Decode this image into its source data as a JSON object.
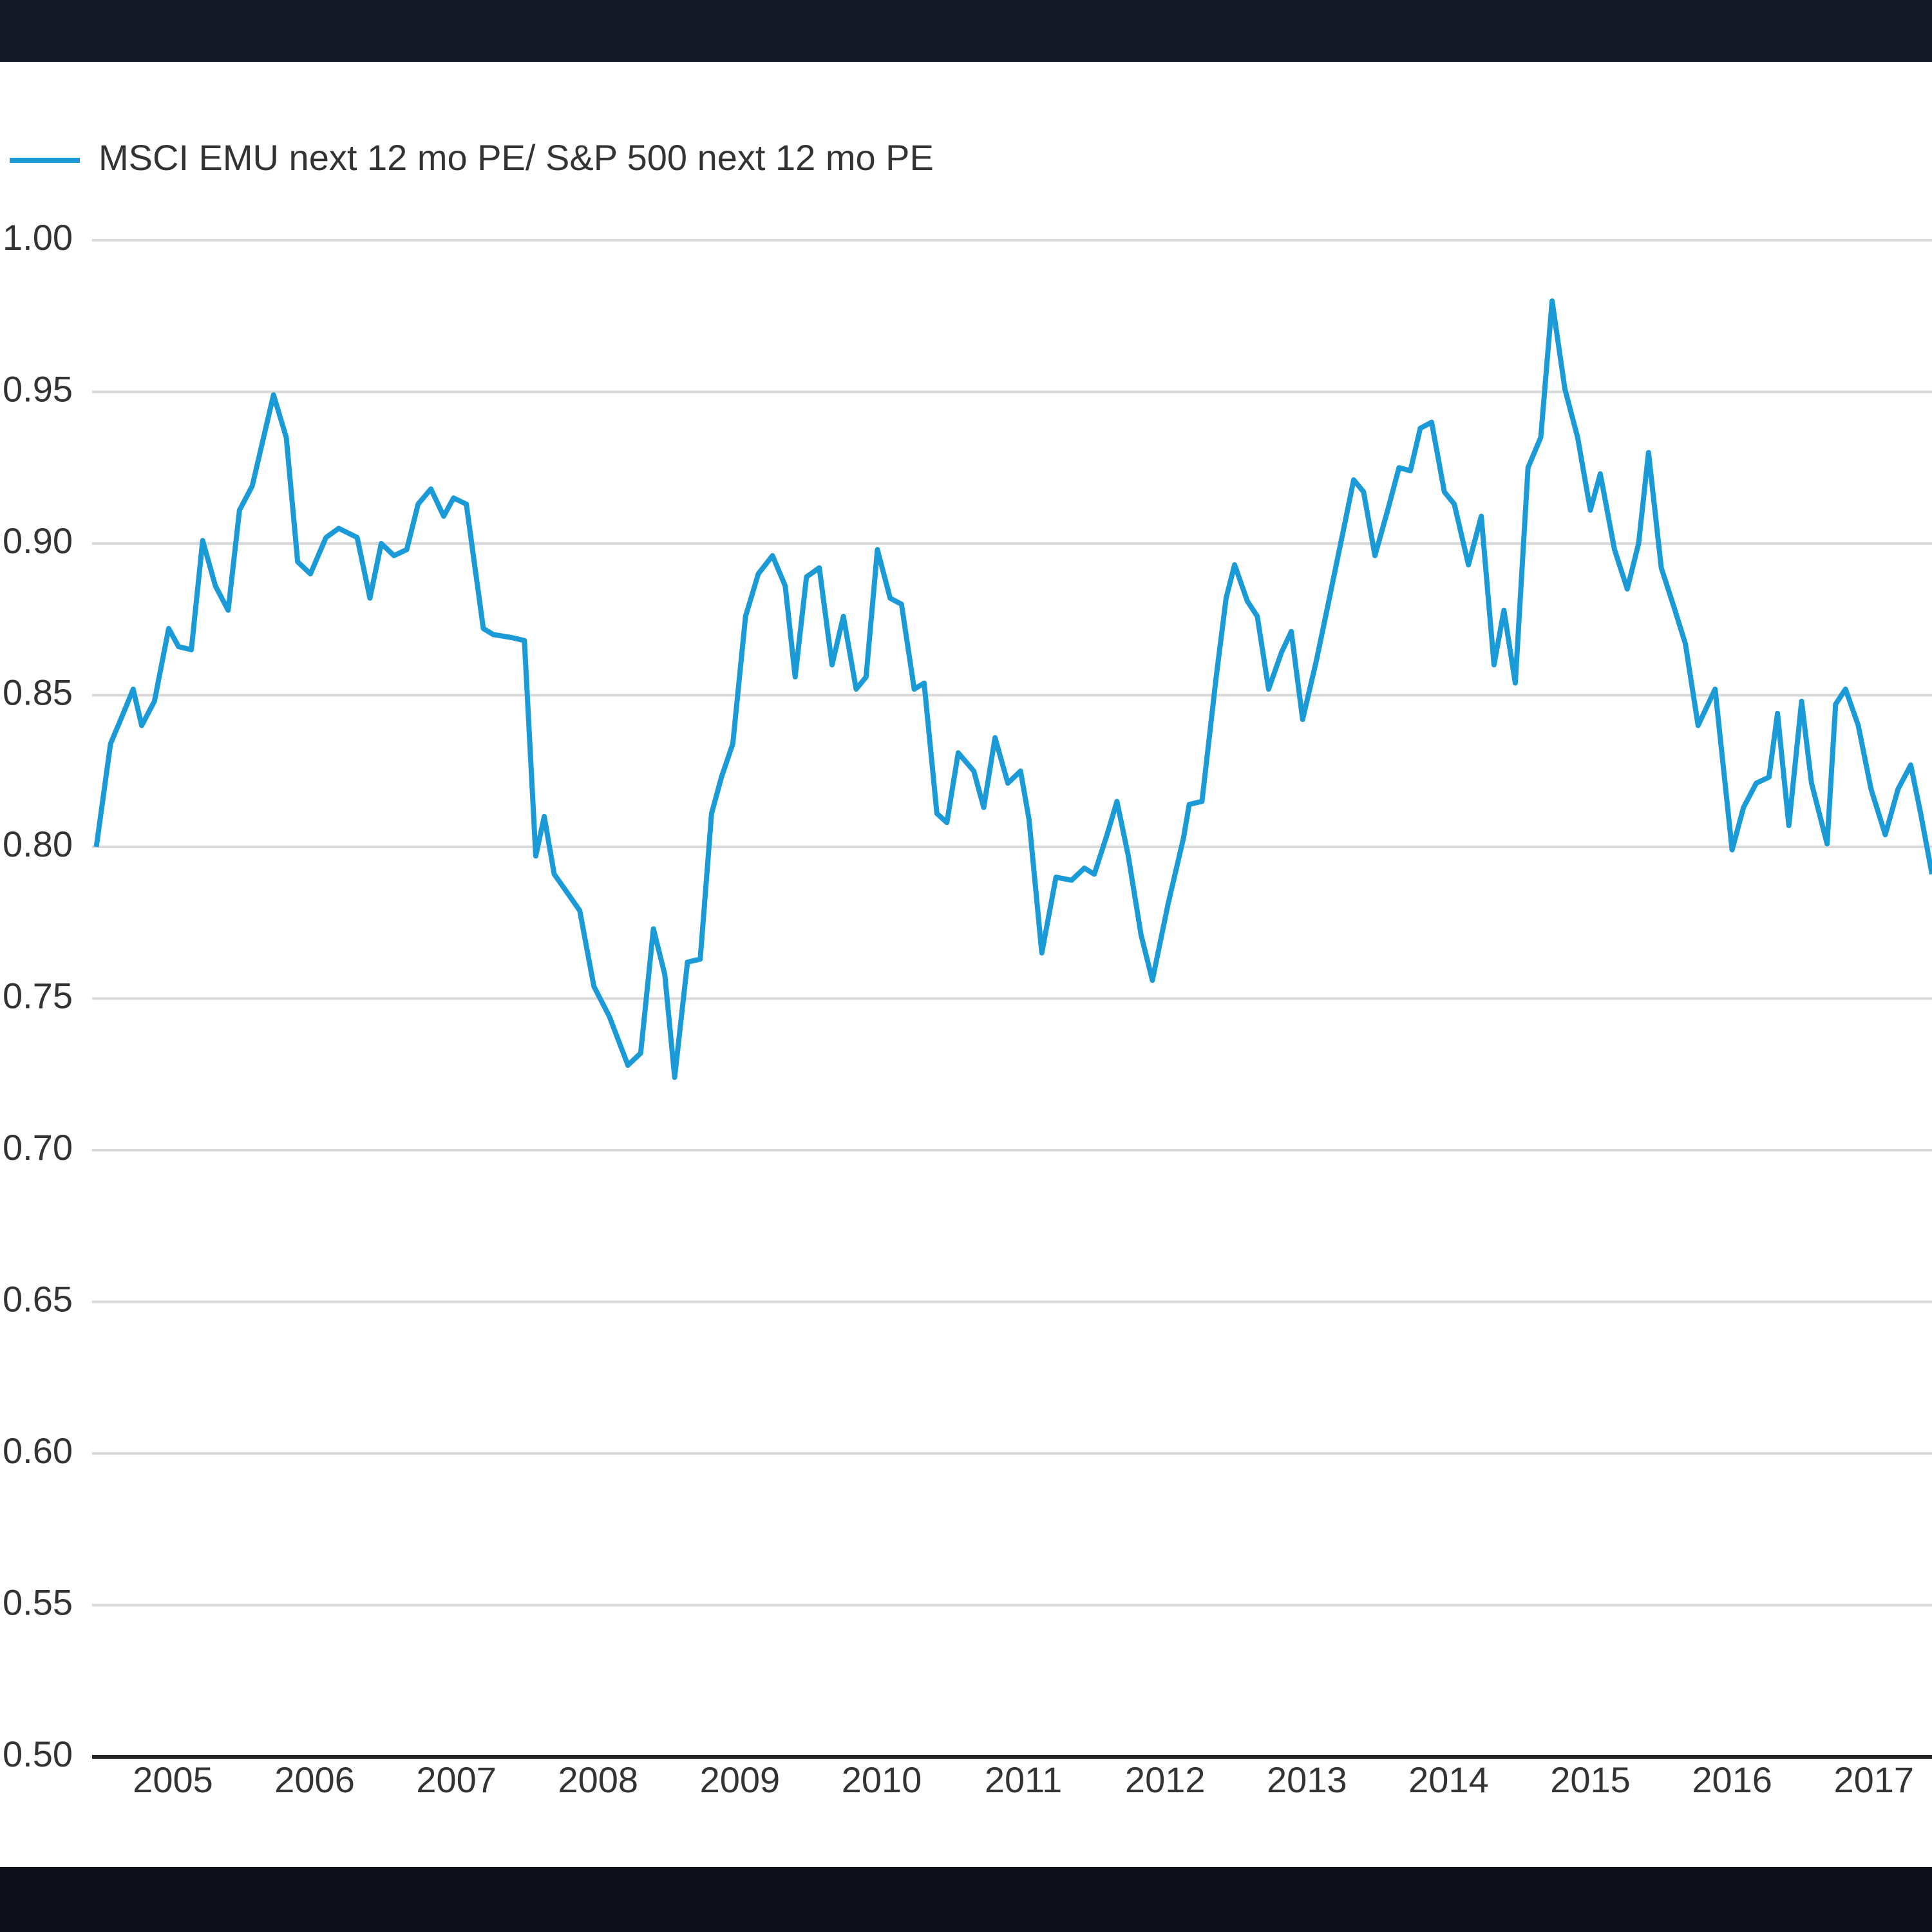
{
  "chart_data": {
    "type": "line",
    "x": [
      2004.96,
      2005.06,
      2005.15,
      2005.22,
      2005.28,
      2005.37,
      2005.47,
      2005.54,
      2005.63,
      2005.71,
      2005.8,
      2005.89,
      2005.97,
      2006.06,
      2006.21,
      2006.3,
      2006.38,
      2006.47,
      2006.58,
      2006.67,
      2006.8,
      2006.89,
      2006.97,
      2007.06,
      2007.15,
      2007.23,
      2007.32,
      2007.41,
      2007.48,
      2007.57,
      2007.69,
      2007.76,
      2007.89,
      2007.98,
      2008.06,
      2008.12,
      2008.19,
      2008.28,
      2008.37,
      2008.47,
      2008.58,
      2008.71,
      2008.8,
      2008.89,
      2008.97,
      2009.04,
      2009.13,
      2009.22,
      2009.3,
      2009.37,
      2009.45,
      2009.54,
      2009.63,
      2009.73,
      2009.82,
      2009.89,
      2009.97,
      2010.06,
      2010.15,
      2010.23,
      2010.32,
      2010.39,
      2010.47,
      2010.56,
      2010.64,
      2010.73,
      2010.8,
      2010.89,
      2010.96,
      2011.04,
      2011.15,
      2011.22,
      2011.3,
      2011.39,
      2011.48,
      2011.54,
      2011.63,
      2011.73,
      2011.84,
      2011.93,
      2012.0,
      2012.09,
      2012.16,
      2012.24,
      2012.33,
      2012.41,
      2012.52,
      2012.63,
      2012.67,
      2012.76,
      2012.86,
      2012.93,
      2012.99,
      2013.08,
      2013.15,
      2013.23,
      2013.32,
      2013.39,
      2013.47,
      2013.57,
      2013.65,
      2013.76,
      2013.83,
      2013.9,
      2013.98,
      2014.07,
      2014.15,
      2014.23,
      2014.3,
      2014.38,
      2014.47,
      2014.54,
      2014.64,
      2014.73,
      2014.82,
      2014.89,
      2014.97,
      2015.06,
      2015.15,
      2015.23,
      2015.32,
      2015.41,
      2015.5,
      2015.57,
      2015.67,
      2015.76,
      2015.84,
      2015.91,
      2016.0,
      2016.09,
      2016.17,
      2016.26,
      2016.38,
      2016.5,
      2016.58,
      2016.67,
      2016.76,
      2016.82,
      2016.9,
      2016.99,
      2017.06,
      2017.17,
      2017.23,
      2017.3,
      2017.39,
      2017.48,
      2017.58,
      2017.67,
      2017.76,
      2017.83,
      2017.91
    ],
    "series": [
      {
        "name": "MSCI EMU next 12 mo PE/ S&P 500 next 12 mo PE",
        "color": "#1a9bd7",
        "values": [
          0.8,
          0.834,
          0.844,
          0.852,
          0.84,
          0.848,
          0.872,
          0.866,
          0.865,
          0.901,
          0.886,
          0.878,
          0.911,
          0.919,
          0.949,
          0.935,
          0.894,
          0.89,
          0.902,
          0.905,
          0.902,
          0.882,
          0.9,
          0.896,
          0.898,
          0.913,
          0.918,
          0.909,
          0.915,
          0.913,
          0.872,
          0.87,
          0.869,
          0.868,
          0.797,
          0.81,
          0.791,
          0.785,
          0.779,
          0.754,
          0.744,
          0.728,
          0.732,
          0.773,
          0.758,
          0.724,
          0.762,
          0.763,
          0.811,
          0.823,
          0.834,
          0.876,
          0.89,
          0.896,
          0.886,
          0.856,
          0.889,
          0.892,
          0.86,
          0.876,
          0.852,
          0.856,
          0.898,
          0.882,
          0.88,
          0.852,
          0.854,
          0.811,
          0.808,
          0.831,
          0.825,
          0.813,
          0.836,
          0.821,
          0.825,
          0.809,
          0.765,
          0.79,
          0.789,
          0.793,
          0.791,
          0.804,
          0.815,
          0.797,
          0.771,
          0.756,
          0.781,
          0.803,
          0.814,
          0.815,
          0.856,
          0.882,
          0.893,
          0.881,
          0.876,
          0.852,
          0.864,
          0.871,
          0.842,
          0.862,
          0.88,
          0.905,
          0.921,
          0.917,
          0.896,
          0.911,
          0.925,
          0.924,
          0.938,
          0.94,
          0.917,
          0.913,
          0.893,
          0.909,
          0.86,
          0.878,
          0.854,
          0.925,
          0.935,
          0.98,
          0.951,
          0.935,
          0.911,
          0.923,
          0.898,
          0.885,
          0.9,
          0.93,
          0.892,
          0.879,
          0.867,
          0.84,
          0.852,
          0.799,
          0.813,
          0.821,
          0.823,
          0.844,
          0.807,
          0.848,
          0.821,
          0.801,
          0.847,
          0.852,
          0.84,
          0.819,
          0.804,
          0.819,
          0.827,
          0.811,
          0.791
        ]
      }
    ],
    "xlim": [
      2004.93,
      2017.91
    ],
    "xticks": [
      2005,
      2006,
      2007,
      2008,
      2009,
      2010,
      2011,
      2012,
      2013,
      2014,
      2015,
      2016,
      2017
    ],
    "ylim": [
      0.5,
      1.0
    ],
    "yticks": [
      {
        "value": 0.5,
        "label": "0.50"
      },
      0.55,
      {
        "value": 0.6,
        "label": "0.60"
      },
      0.65,
      {
        "value": 0.7,
        "label": "0.70"
      },
      0.75,
      {
        "value": 0.8,
        "label": "0.80"
      },
      0.85,
      {
        "value": 0.9,
        "label": "0.90"
      },
      0.95,
      {
        "value": 1.0,
        "label": "1.00"
      }
    ],
    "grid": true
  }
}
